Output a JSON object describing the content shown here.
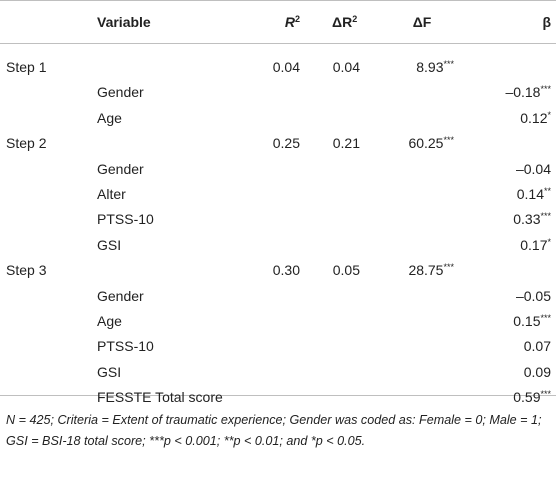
{
  "headers": {
    "variable": "Variable",
    "r2_base": "R",
    "r2_sup": "2",
    "dr2_base": "ΔR",
    "dr2_sup": "2",
    "df": "ΔF",
    "beta": "β"
  },
  "rows": [
    {
      "step": "Step 1",
      "variable": "",
      "r2": "0.04",
      "dr2": "0.04",
      "df": "8.93",
      "df_sig": "***",
      "beta": "",
      "beta_sig": ""
    },
    {
      "step": "",
      "variable": "Gender",
      "r2": "",
      "dr2": "",
      "df": "",
      "df_sig": "",
      "beta": "–0.18",
      "beta_sig": "***"
    },
    {
      "step": "",
      "variable": "Age",
      "r2": "",
      "dr2": "",
      "df": "",
      "df_sig": "",
      "beta": "0.12",
      "beta_sig": "*"
    },
    {
      "step": "Step 2",
      "variable": "",
      "r2": "0.25",
      "dr2": "0.21",
      "df": "60.25",
      "df_sig": "***",
      "beta": "",
      "beta_sig": ""
    },
    {
      "step": "",
      "variable": "Gender",
      "r2": "",
      "dr2": "",
      "df": "",
      "df_sig": "",
      "beta": "–0.04",
      "beta_sig": ""
    },
    {
      "step": "",
      "variable": "Alter",
      "r2": "",
      "dr2": "",
      "df": "",
      "df_sig": "",
      "beta": "0.14",
      "beta_sig": "**"
    },
    {
      "step": "",
      "variable": "PTSS-10",
      "r2": "",
      "dr2": "",
      "df": "",
      "df_sig": "",
      "beta": "0.33",
      "beta_sig": "***"
    },
    {
      "step": "",
      "variable": "GSI",
      "r2": "",
      "dr2": "",
      "df": "",
      "df_sig": "",
      "beta": "0.17",
      "beta_sig": "*"
    },
    {
      "step": "Step 3",
      "variable": "",
      "r2": "0.30",
      "dr2": "0.05",
      "df": "28.75",
      "df_sig": "***",
      "beta": "",
      "beta_sig": ""
    },
    {
      "step": "",
      "variable": "Gender",
      "r2": "",
      "dr2": "",
      "df": "",
      "df_sig": "",
      "beta": "–0.05",
      "beta_sig": ""
    },
    {
      "step": "",
      "variable": "Age",
      "r2": "",
      "dr2": "",
      "df": "",
      "df_sig": "",
      "beta": "0.15",
      "beta_sig": "***"
    },
    {
      "step": "",
      "variable": "PTSS-10",
      "r2": "",
      "dr2": "",
      "df": "",
      "df_sig": "",
      "beta": "0.07",
      "beta_sig": ""
    },
    {
      "step": "",
      "variable": "GSI",
      "r2": "",
      "dr2": "",
      "df": "",
      "df_sig": "",
      "beta": "0.09",
      "beta_sig": ""
    },
    {
      "step": "",
      "variable": "FESSTE Total score",
      "r2": "",
      "dr2": "",
      "df": "",
      "df_sig": "",
      "beta": "0.59",
      "beta_sig": "***"
    }
  ],
  "footnote": "N = 425; Criteria = Extent of traumatic experience; Gender was coded as: Female = 0; Male = 1; GSI = BSI-18 total score; ***p < 0.001; **p < 0.01; and *p < 0.05."
}
